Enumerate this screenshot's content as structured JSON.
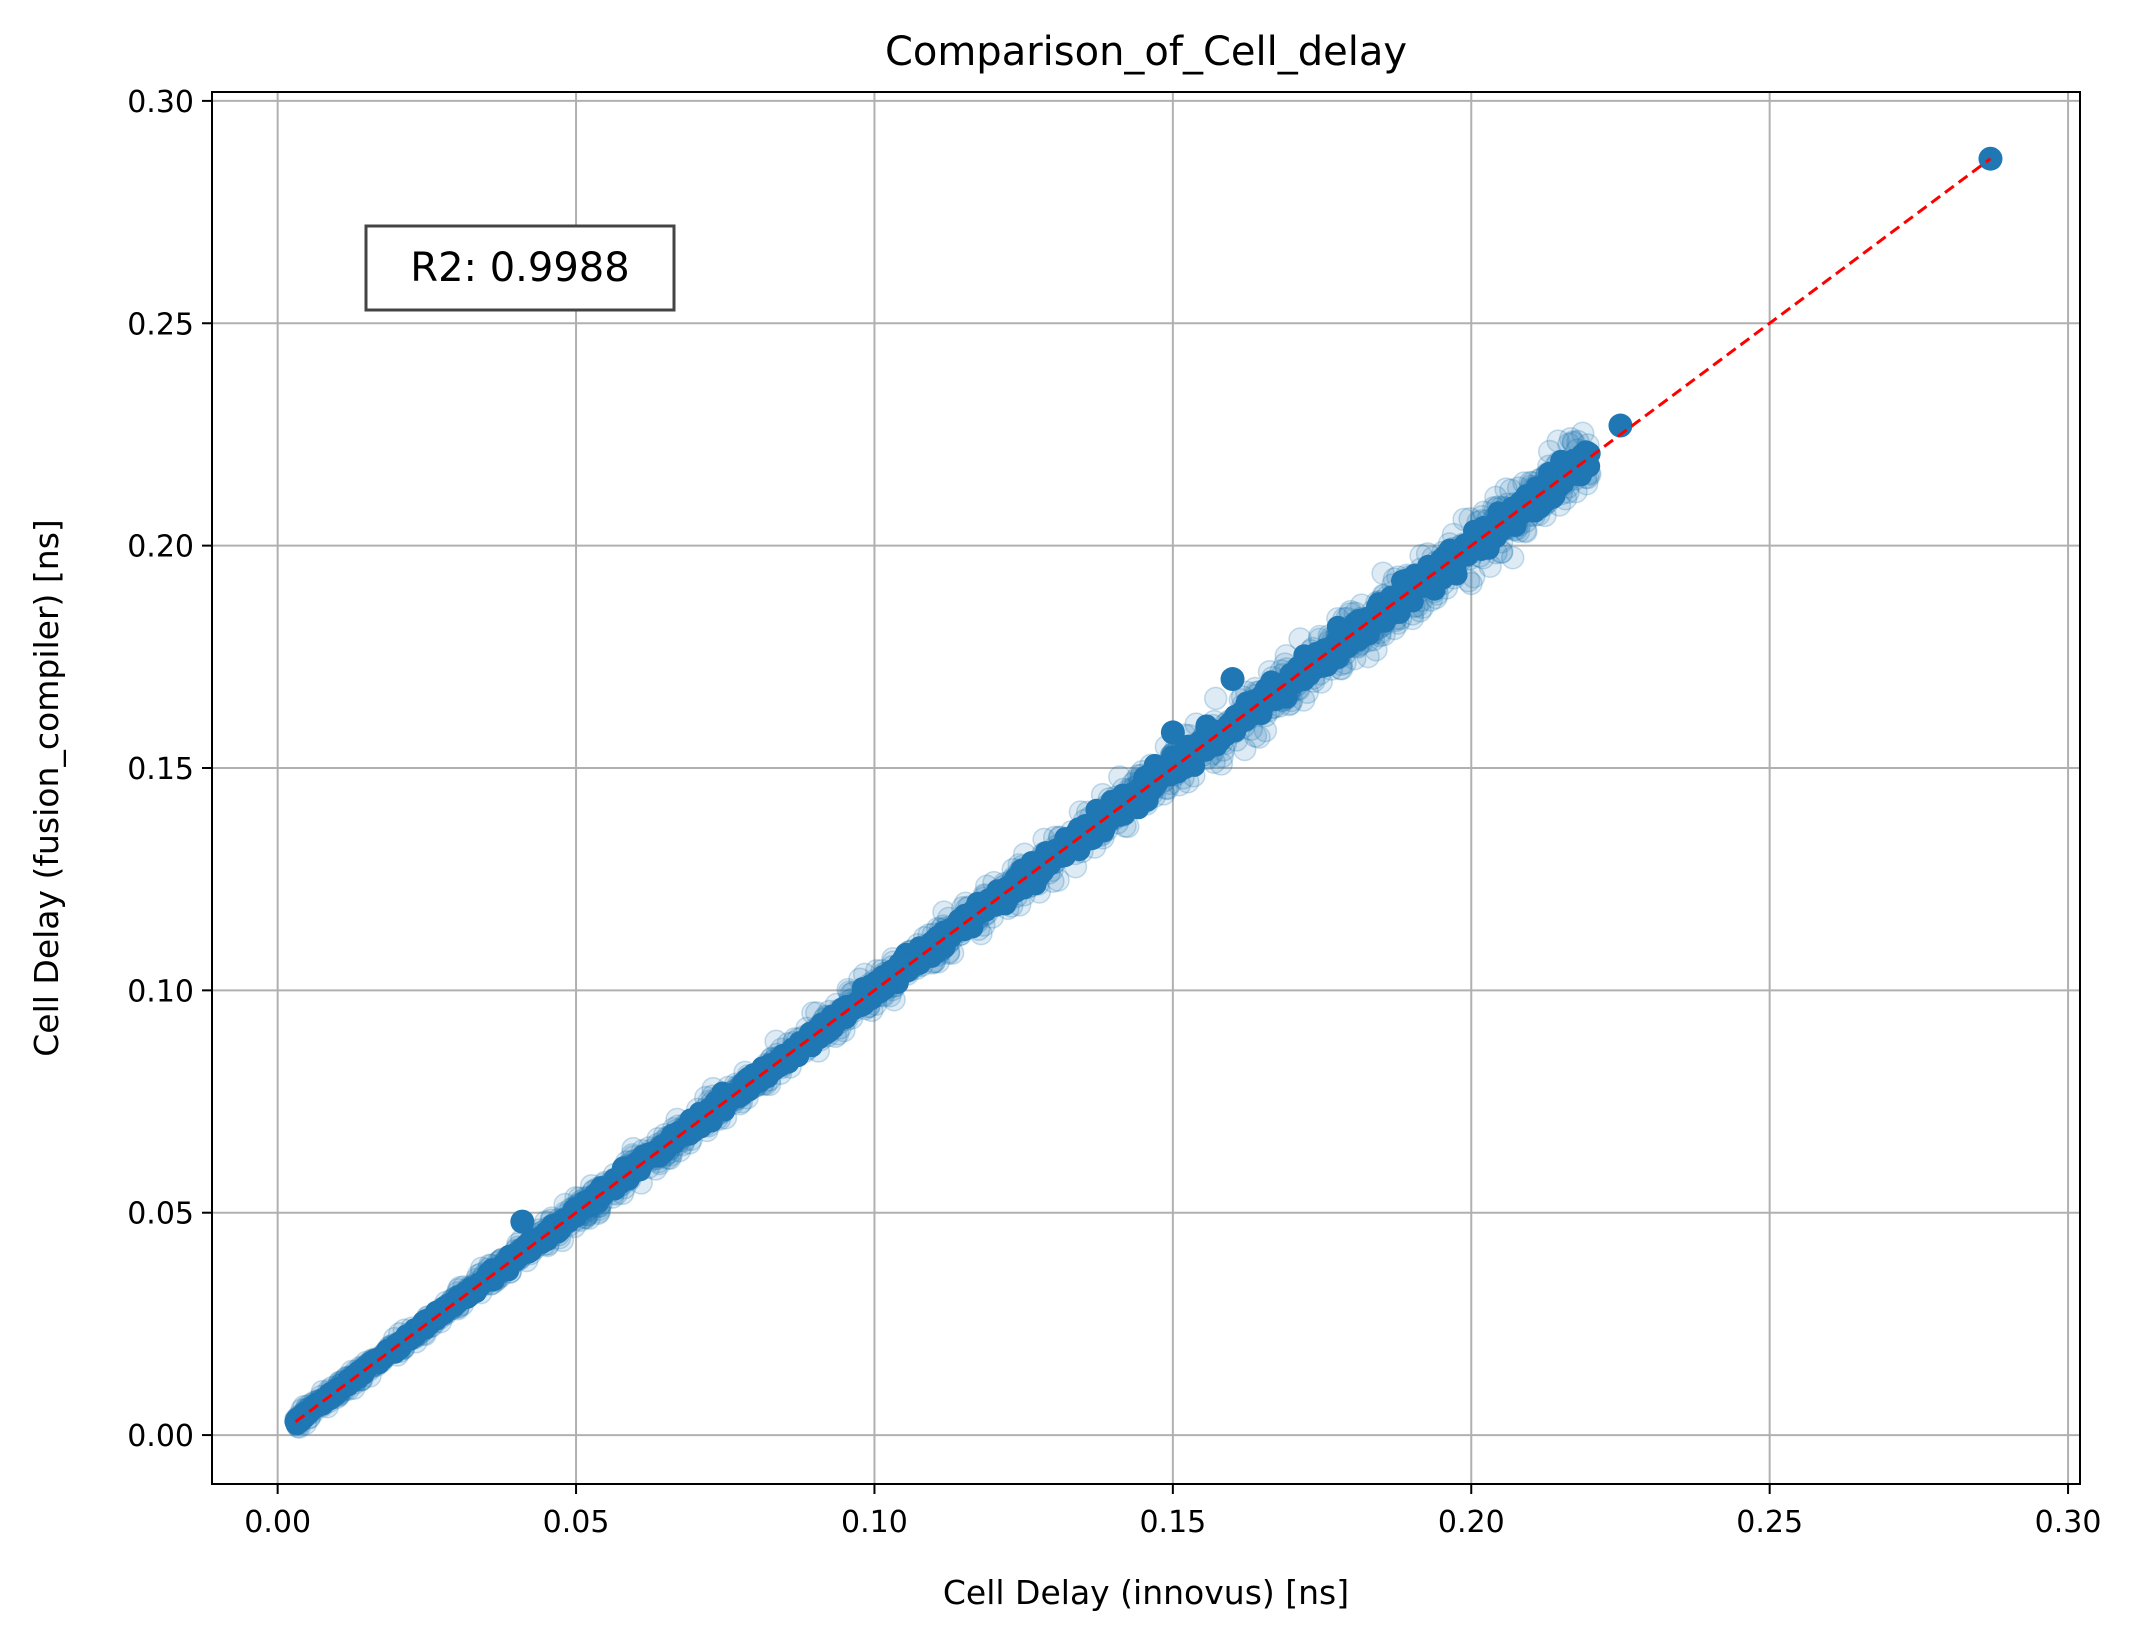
{
  "chart_data": {
    "type": "scatter",
    "title": "Comparison_of_Cell_delay",
    "xlabel": "Cell Delay (innovus) [ns]",
    "ylabel": "Cell Delay (fusion_compiler) [ns]",
    "xlim": [
      -0.011,
      0.302
    ],
    "ylim": [
      -0.011,
      0.302
    ],
    "xticks": [
      0.0,
      0.05,
      0.1,
      0.15,
      0.2,
      0.25,
      0.3
    ],
    "yticks": [
      0.0,
      0.05,
      0.1,
      0.15,
      0.2,
      0.25,
      0.3
    ],
    "xtick_labels": [
      "0.00",
      "0.05",
      "0.10",
      "0.15",
      "0.20",
      "0.25",
      "0.30"
    ],
    "ytick_labels": [
      "0.00",
      "0.05",
      "0.10",
      "0.15",
      "0.20",
      "0.25",
      "0.30"
    ],
    "grid": true,
    "point_color": "#1f77b4",
    "reference_line": {
      "x": [
        0.003,
        0.287
      ],
      "y": [
        0.003,
        0.287
      ],
      "color": "#ff0000",
      "style": "dashed"
    },
    "annotation": {
      "text": "R2: 0.9988",
      "x": 0.04,
      "y": 0.26
    },
    "points": {
      "x_range": [
        0.003,
        0.22
      ],
      "spread": 0.004,
      "outliers": [
        [
          0.225,
          0.227
        ],
        [
          0.287,
          0.287
        ],
        [
          0.041,
          0.048
        ],
        [
          0.058,
          0.06
        ],
        [
          0.15,
          0.158
        ],
        [
          0.16,
          0.17
        ]
      ]
    }
  }
}
